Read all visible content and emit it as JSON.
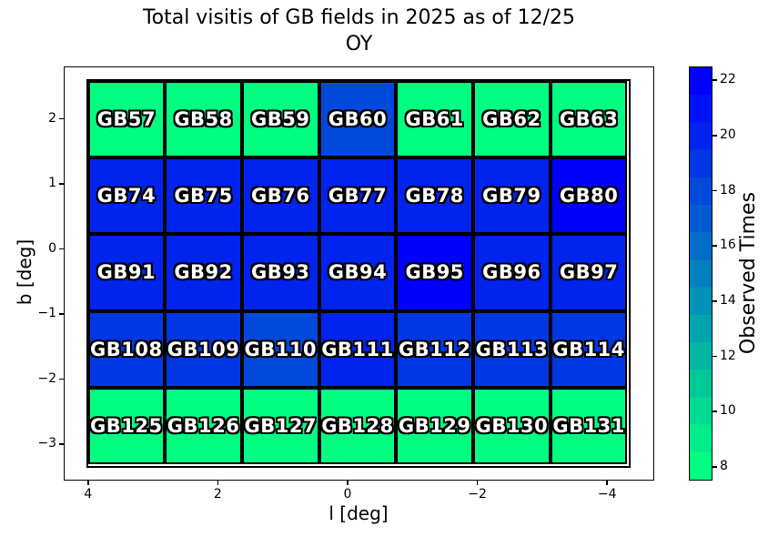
{
  "title": {
    "line1": "Total visitis of GB fields in 2025 as of 12/25",
    "line2": "OY"
  },
  "axes": {
    "xlabel": "l [deg]",
    "ylabel": "b [deg]",
    "x_ticks": [
      {
        "label": "4",
        "value": 4
      },
      {
        "label": "2",
        "value": 2
      },
      {
        "label": "0",
        "value": 0
      },
      {
        "label": "−2",
        "value": -2
      },
      {
        "label": "−4",
        "value": -4
      }
    ],
    "y_ticks": [
      {
        "label": "2",
        "value": 2
      },
      {
        "label": "1",
        "value": 1
      },
      {
        "label": "0",
        "value": 0
      },
      {
        "label": "−1",
        "value": -1
      },
      {
        "label": "−2",
        "value": -2
      },
      {
        "label": "−3",
        "value": -3
      }
    ]
  },
  "colorbar": {
    "label": "Observed Times",
    "ticks": [
      {
        "label": "22",
        "value": 22
      },
      {
        "label": "20",
        "value": 20
      },
      {
        "label": "18",
        "value": 18
      },
      {
        "label": "16",
        "value": 16
      },
      {
        "label": "14",
        "value": 14
      },
      {
        "label": "12",
        "value": 12
      },
      {
        "label": "10",
        "value": 10
      },
      {
        "label": "8",
        "value": 8
      }
    ],
    "range_min": 7.5,
    "range_max": 22.5,
    "low_color": "#00FF80",
    "high_color": "#0000FF",
    "band_colors_bottom_to_top": [
      "#00FF80",
      "#00ED89",
      "#00DB92",
      "#00C89B",
      "#00B6A4",
      "#00A4AE",
      "#0092B7",
      "#0080BF",
      "#006DC8",
      "#005BD1",
      "#0049DB",
      "#0037E4",
      "#0024ED",
      "#0012F6",
      "#0000FF"
    ]
  },
  "grid": {
    "rows": [
      {
        "cells": [
          {
            "label": "GB57",
            "value": 8,
            "color": "#00FF80"
          },
          {
            "label": "GB58",
            "value": 8,
            "color": "#00FF80"
          },
          {
            "label": "GB59",
            "value": 8,
            "color": "#00FF80"
          },
          {
            "label": "GB60",
            "value": 18,
            "color": "#0049DB"
          },
          {
            "label": "GB61",
            "value": 8,
            "color": "#00FF80"
          },
          {
            "label": "GB62",
            "value": 8,
            "color": "#00FF80"
          },
          {
            "label": "GB63",
            "value": 8,
            "color": "#00FF80"
          }
        ]
      },
      {
        "cells": [
          {
            "label": "GB74",
            "value": 20,
            "color": "#0024ED"
          },
          {
            "label": "GB75",
            "value": 20,
            "color": "#0024ED"
          },
          {
            "label": "GB76",
            "value": 20,
            "color": "#0024ED"
          },
          {
            "label": "GB77",
            "value": 20,
            "color": "#0024ED"
          },
          {
            "label": "GB78",
            "value": 20,
            "color": "#0024ED"
          },
          {
            "label": "GB79",
            "value": 20,
            "color": "#0024ED"
          },
          {
            "label": "GB80",
            "value": 22,
            "color": "#0000FF"
          }
        ]
      },
      {
        "cells": [
          {
            "label": "GB91",
            "value": 20,
            "color": "#0024ED"
          },
          {
            "label": "GB92",
            "value": 20,
            "color": "#0024ED"
          },
          {
            "label": "GB93",
            "value": 20,
            "color": "#0024ED"
          },
          {
            "label": "GB94",
            "value": 20,
            "color": "#0024ED"
          },
          {
            "label": "GB95",
            "value": 22,
            "color": "#0000FF"
          },
          {
            "label": "GB96",
            "value": 20,
            "color": "#0024ED"
          },
          {
            "label": "GB97",
            "value": 20,
            "color": "#0024ED"
          }
        ]
      },
      {
        "cells": [
          {
            "label": "GB108",
            "value": 19,
            "color": "#0037E4"
          },
          {
            "label": "GB109",
            "value": 19,
            "color": "#0037E4"
          },
          {
            "label": "GB110",
            "value": 18,
            "color": "#0049DB"
          },
          {
            "label": "GB111",
            "value": 20,
            "color": "#0024ED"
          },
          {
            "label": "GB112",
            "value": 19,
            "color": "#0037E4"
          },
          {
            "label": "GB113",
            "value": 19,
            "color": "#0037E4"
          },
          {
            "label": "GB114",
            "value": 19,
            "color": "#0037E4"
          }
        ]
      },
      {
        "cells": [
          {
            "label": "GB125",
            "value": 8,
            "color": "#00FF80"
          },
          {
            "label": "GB126",
            "value": 8,
            "color": "#00FF80"
          },
          {
            "label": "GB127",
            "value": 8,
            "color": "#00FF80"
          },
          {
            "label": "GB128",
            "value": 8,
            "color": "#00FF80"
          },
          {
            "label": "GB129",
            "value": 8,
            "color": "#00FF80"
          },
          {
            "label": "GB130",
            "value": 8,
            "color": "#00FF80"
          },
          {
            "label": "GB131",
            "value": 8,
            "color": "#00FF80"
          }
        ]
      }
    ]
  },
  "chart_data": {
    "type": "heatmap",
    "title": "Total visitis of GB fields in 2025 as of 12/25 OY",
    "xlabel": "l [deg]",
    "ylabel": "b [deg]",
    "colorbar_label": "Observed Times",
    "colormap": "winter_r (green = low, blue = high)",
    "color_range": [
      7.5,
      22.5
    ],
    "colorbar_tick_values": [
      8,
      10,
      12,
      14,
      16,
      18,
      20,
      22
    ],
    "x_tick_values": [
      4,
      2,
      0,
      -2,
      -4
    ],
    "y_tick_values": [
      2,
      1,
      0,
      -1,
      -2,
      -3
    ],
    "grid_shape": [
      5,
      7
    ],
    "rows": [
      {
        "fields": [
          "GB57",
          "GB58",
          "GB59",
          "GB60",
          "GB61",
          "GB62",
          "GB63"
        ],
        "observed_times": [
          8,
          8,
          8,
          18,
          8,
          8,
          8
        ]
      },
      {
        "fields": [
          "GB74",
          "GB75",
          "GB76",
          "GB77",
          "GB78",
          "GB79",
          "GB80"
        ],
        "observed_times": [
          20,
          20,
          20,
          20,
          20,
          20,
          22
        ]
      },
      {
        "fields": [
          "GB91",
          "GB92",
          "GB93",
          "GB94",
          "GB95",
          "GB96",
          "GB97"
        ],
        "observed_times": [
          20,
          20,
          20,
          20,
          22,
          20,
          20
        ]
      },
      {
        "fields": [
          "GB108",
          "GB109",
          "GB110",
          "GB111",
          "GB112",
          "GB113",
          "GB114"
        ],
        "observed_times": [
          19,
          19,
          18,
          20,
          19,
          19,
          19
        ]
      },
      {
        "fields": [
          "GB125",
          "GB126",
          "GB127",
          "GB128",
          "GB129",
          "GB130",
          "GB131"
        ],
        "observed_times": [
          8,
          8,
          8,
          8,
          8,
          8,
          8
        ]
      }
    ],
    "legend_position": "right colorbar",
    "grid_on": false
  }
}
